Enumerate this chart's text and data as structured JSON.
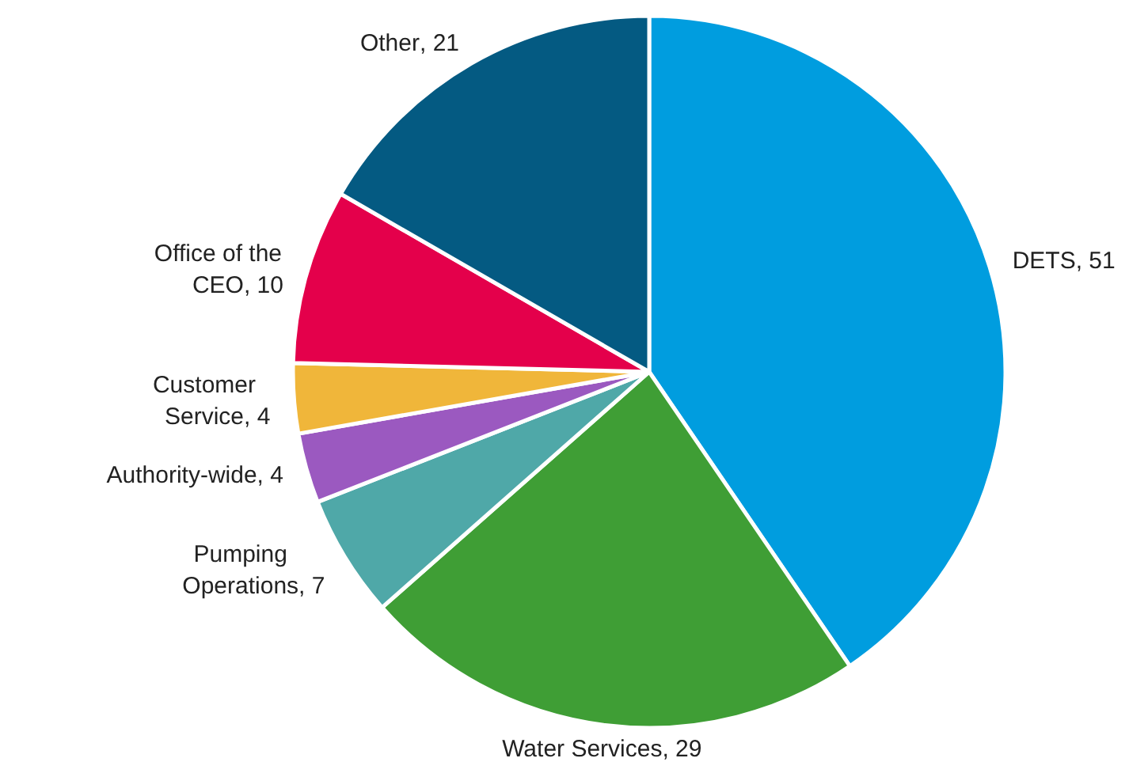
{
  "chart_data": {
    "type": "pie",
    "categories": [
      "DETS",
      "Water Services",
      "Pumping Operations",
      "Authority-wide",
      "Customer Service",
      "Office of the CEO",
      "Other"
    ],
    "values": [
      51,
      29,
      7,
      4,
      4,
      10,
      21
    ],
    "colors": [
      "#009ddf",
      "#3f9e35",
      "#4fa8a8",
      "#9b59c0",
      "#f0b63a",
      "#e4004b",
      "#045a82"
    ],
    "value_labels": [
      ", 51",
      ", 29",
      ", 7",
      ", 4",
      ", 4",
      ", 10",
      ", 21"
    ]
  }
}
